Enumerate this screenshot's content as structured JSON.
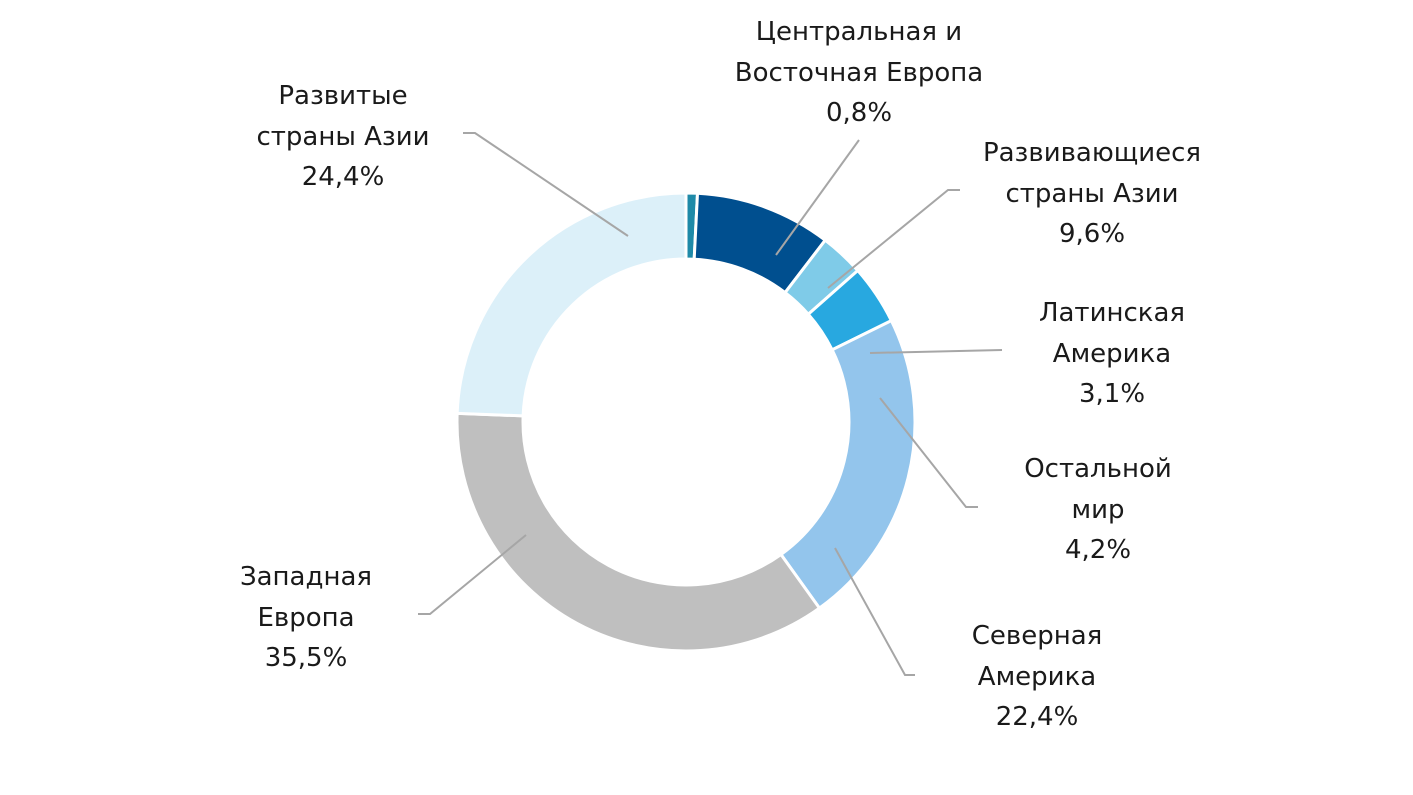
{
  "chart_data": {
    "type": "pie",
    "variant": "donut",
    "title": "",
    "center": [
      686,
      422
    ],
    "outer_radius": 229,
    "inner_radius": 163,
    "start_angle_deg": 0,
    "direction": "clockwise-from-top",
    "legend": "none (data labels with leader lines)",
    "slices": [
      {
        "name": "Центральная и Восточная Европа",
        "value": 0.8,
        "label": "0,8%",
        "color": "#1f8aa8"
      },
      {
        "name": "Развивающиеся страны Азии",
        "value": 9.6,
        "label": "9,6%",
        "color": "#004f8f"
      },
      {
        "name": "Латинская Америка",
        "value": 3.1,
        "label": "3,1%",
        "color": "#7fcbe8"
      },
      {
        "name": "Остальной мир",
        "value": 4.2,
        "label": "4,2%",
        "color": "#28a8e0"
      },
      {
        "name": "Северная Америка",
        "value": 22.4,
        "label": "22,4%",
        "color": "#93c5ec"
      },
      {
        "name": "Западная Европа",
        "value": 35.5,
        "label": "35,5%",
        "color": "#bfbfbf"
      },
      {
        "name": "Развитые страны Азии",
        "value": 24.4,
        "label": "24,4%",
        "color": "#dcf0f9"
      }
    ]
  },
  "labels": {
    "cee": {
      "l1": "Центральная и",
      "l2": "Восточная Европа",
      "v": "0,8%"
    },
    "dev_asia_emerging": {
      "l1": "Развивающиеся",
      "l2": "страны Азии",
      "v": "9,6%"
    },
    "latam": {
      "l1": "Латинская",
      "l2": "Америка",
      "v": "3,1%"
    },
    "rest": {
      "l1": "Остальной",
      "l2": "мир",
      "v": "4,2%"
    },
    "na": {
      "l1": "Северная",
      "l2": "Америка",
      "v": "22,4%"
    },
    "we": {
      "l1": "Западная",
      "l2": "Европа",
      "v": "35,5%"
    },
    "dev_asia": {
      "l1": "Развитые",
      "l2": "страны Азии",
      "v": "24,4%"
    }
  }
}
